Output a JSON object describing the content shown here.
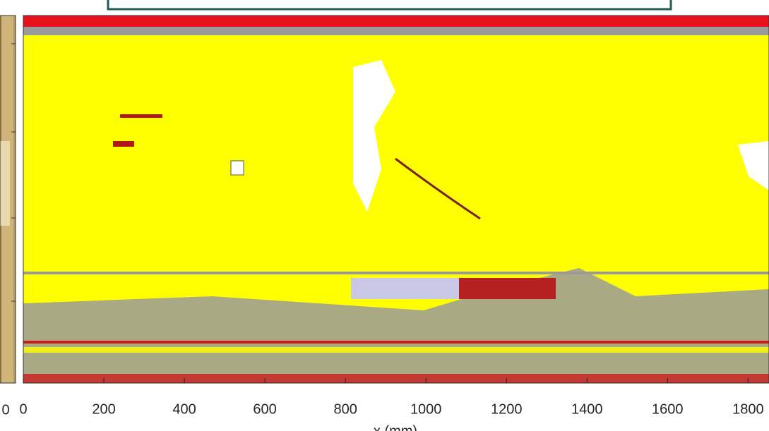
{
  "chart_data": {
    "type": "image",
    "xlabel": "x (mm)",
    "xlim": [
      0,
      1852
    ],
    "xticks": [
      0,
      200,
      400,
      600,
      800,
      1000,
      1200,
      1400,
      1600,
      1800
    ]
  },
  "left_panel": {
    "xtick_label": "0"
  }
}
